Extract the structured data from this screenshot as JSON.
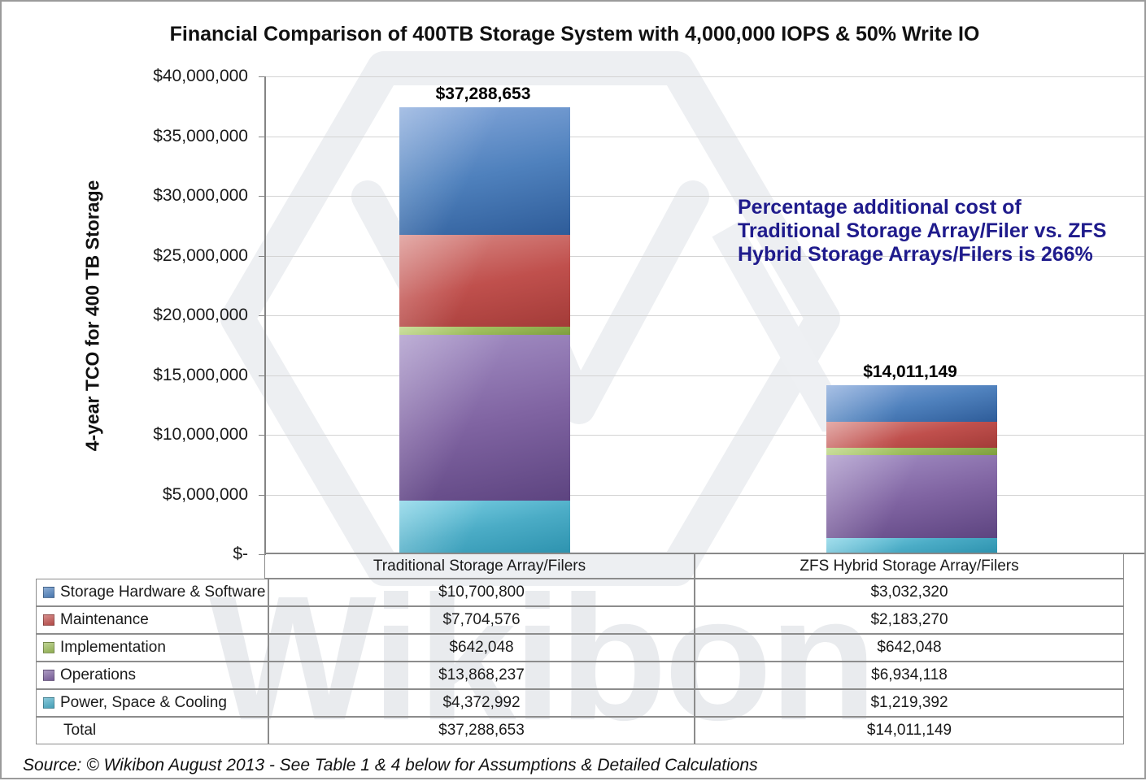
{
  "title": "Financial Comparison of 400TB Storage System with 4,000,000 IOPS & 50% Write IO",
  "watermark_text": "Wikibon",
  "y_axis": {
    "title": "4-year TCO for 400 TB Storage",
    "tick_labels": [
      "$40,000,000",
      "$35,000,000",
      "$30,000,000",
      "$25,000,000",
      "$20,000,000",
      "$15,000,000",
      "$10,000,000",
      "$5,000,000",
      "$-"
    ]
  },
  "annotation": {
    "color": "#1F1B8C",
    "lines": [
      "Percentage additional cost of",
      "Traditional Storage Array/Filer vs. ZFS",
      "Hybrid Storage Arrays/Filers is 266%"
    ]
  },
  "source_note": "Source: © Wikibon August 2013  - See Table 1 & 4 below for Assumptions & Detailed Calculations",
  "chart_data": {
    "type": "bar",
    "stacked": true,
    "title": "Financial Comparison of 400TB Storage System with 4,000,000 IOPS & 50% Write IO",
    "ylabel": "4-year TCO for 400 TB Storage",
    "ylim": [
      0,
      40000000
    ],
    "ytick_step": 5000000,
    "grid": true,
    "legend_position": "table-rows-below-chart",
    "categories": [
      "Traditional Storage Array/Filers",
      "ZFS Hybrid Storage Array/Filers"
    ],
    "series": [
      {
        "name": "Storage Hardware & Software",
        "color": "#4F81BD",
        "color_light": "#86A8DB",
        "color_dark": "#2E5C99",
        "values": [
          10700800,
          3032320
        ]
      },
      {
        "name": "Maintenance",
        "color": "#C0504D",
        "color_light": "#D98C88",
        "color_dark": "#A33B38",
        "values": [
          7704576,
          2183270
        ]
      },
      {
        "name": "Implementation",
        "color": "#9BBB59",
        "color_light": "#B8D379",
        "color_dark": "#7E9E3E",
        "values": [
          642048,
          642048
        ]
      },
      {
        "name": "Operations",
        "color": "#8064A2",
        "color_light": "#A591C6",
        "color_dark": "#5D4480",
        "values": [
          13868237,
          6934118
        ]
      },
      {
        "name": "Power, Space & Cooling",
        "color": "#4BACC6",
        "color_light": "#7FD2E6",
        "color_dark": "#2E93AF",
        "values": [
          4372992,
          1219392
        ]
      }
    ],
    "stack_order_bottom_to_top": [
      "Power, Space & Cooling",
      "Operations",
      "Implementation",
      "Maintenance",
      "Storage Hardware & Software"
    ],
    "totals": [
      37288653,
      14011149
    ],
    "total_labels": [
      "$37,288,653",
      "$14,011,149"
    ]
  },
  "table": {
    "rows": [
      {
        "label": "Storage Hardware & Software",
        "swatch": "#4F81BD",
        "values": [
          "$10,700,800",
          "$3,032,320"
        ]
      },
      {
        "label": "Maintenance",
        "swatch": "#C0504D",
        "values": [
          "$7,704,576",
          "$2,183,270"
        ]
      },
      {
        "label": "Implementation",
        "swatch": "#9BBB59",
        "values": [
          "$642,048",
          "$642,048"
        ]
      },
      {
        "label": "Operations",
        "swatch": "#8064A2",
        "values": [
          "$13,868,237",
          "$6,934,118"
        ]
      },
      {
        "label": "Power, Space & Cooling",
        "swatch": "#4BACC6",
        "values": [
          "$4,372,992",
          "$1,219,392"
        ]
      },
      {
        "label": "Total",
        "swatch": null,
        "values": [
          "$37,288,653",
          "$14,011,149"
        ]
      }
    ]
  }
}
